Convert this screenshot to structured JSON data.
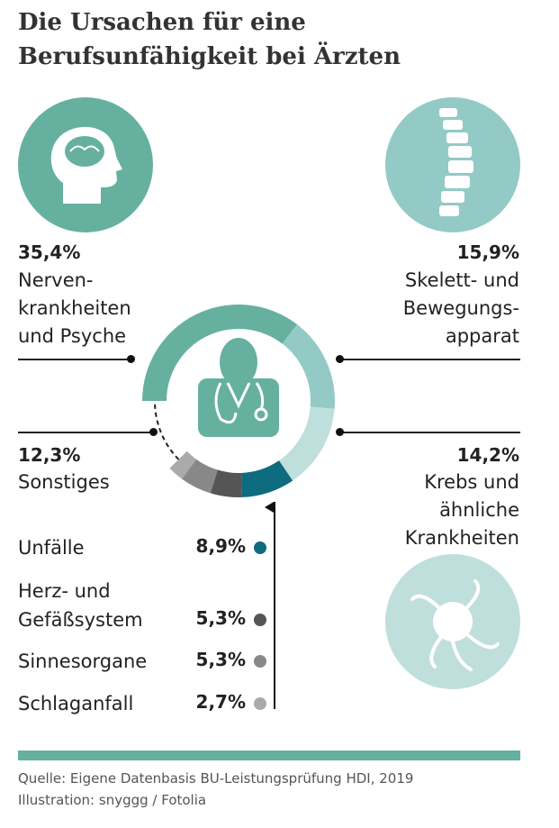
{
  "title": [
    "Die Ursachen für eine",
    "Berufsunfähigkeit bei Ärzten"
  ],
  "colors": {
    "accent": "#66b0a0",
    "skelett": "#93cac6",
    "krebs": "#bfdfdd",
    "unfaelle": "#0e6b80",
    "herz": "#555555",
    "sinnes": "#888888",
    "schlag": "#aaaaaa"
  },
  "labels": {
    "nerven": {
      "pct": "35,4%",
      "l1": "Nerven-",
      "l2": "krankheiten",
      "l3": "und Psyche"
    },
    "skelett": {
      "pct": "15,9%",
      "l1": "Skelett- und",
      "l2": "Bewegungs-",
      "l3": "apparat"
    },
    "sonstiges": {
      "pct": "12,3%",
      "l1": "Sonstiges"
    },
    "krebs": {
      "pct": "14,2%",
      "l1": "Krebs und",
      "l2": "ähnliche",
      "l3": "Krankheiten"
    }
  },
  "legend": [
    {
      "l1": "Unfälle",
      "v": "8,9%"
    },
    {
      "l1": "Herz- und",
      "l2": "Gefäßsystem",
      "v": "5,3%"
    },
    {
      "l1": "Sinnesorgane",
      "v": "5,3%"
    },
    {
      "l1": "Schlaganfall",
      "v": "2,7%"
    }
  ],
  "footer": {
    "source": "Quelle: Eigene Datenbasis BU-Leistungsprüfung HDI, 2019",
    "illustration": "Illustration: snyggg / Fotolia"
  },
  "chart_data": {
    "type": "pie",
    "title": "Die Ursachen für eine Berufsunfähigkeit bei Ärzten",
    "categories": [
      "Nervenkrankheiten und Psyche",
      "Skelett- und Bewegungsapparat",
      "Krebs und ähnliche Krankheiten",
      "Unfälle",
      "Herz- und Gefäßsystem",
      "Sinnesorgane",
      "Schlaganfall",
      "Sonstiges"
    ],
    "values": [
      35.4,
      15.9,
      14.2,
      8.9,
      5.3,
      5.3,
      2.7,
      12.3
    ],
    "colors": [
      "#66b0a0",
      "#93cac6",
      "#bfdfdd",
      "#0e6b80",
      "#555555",
      "#888888",
      "#aaaaaa",
      "dashed"
    ],
    "unit": "%"
  }
}
